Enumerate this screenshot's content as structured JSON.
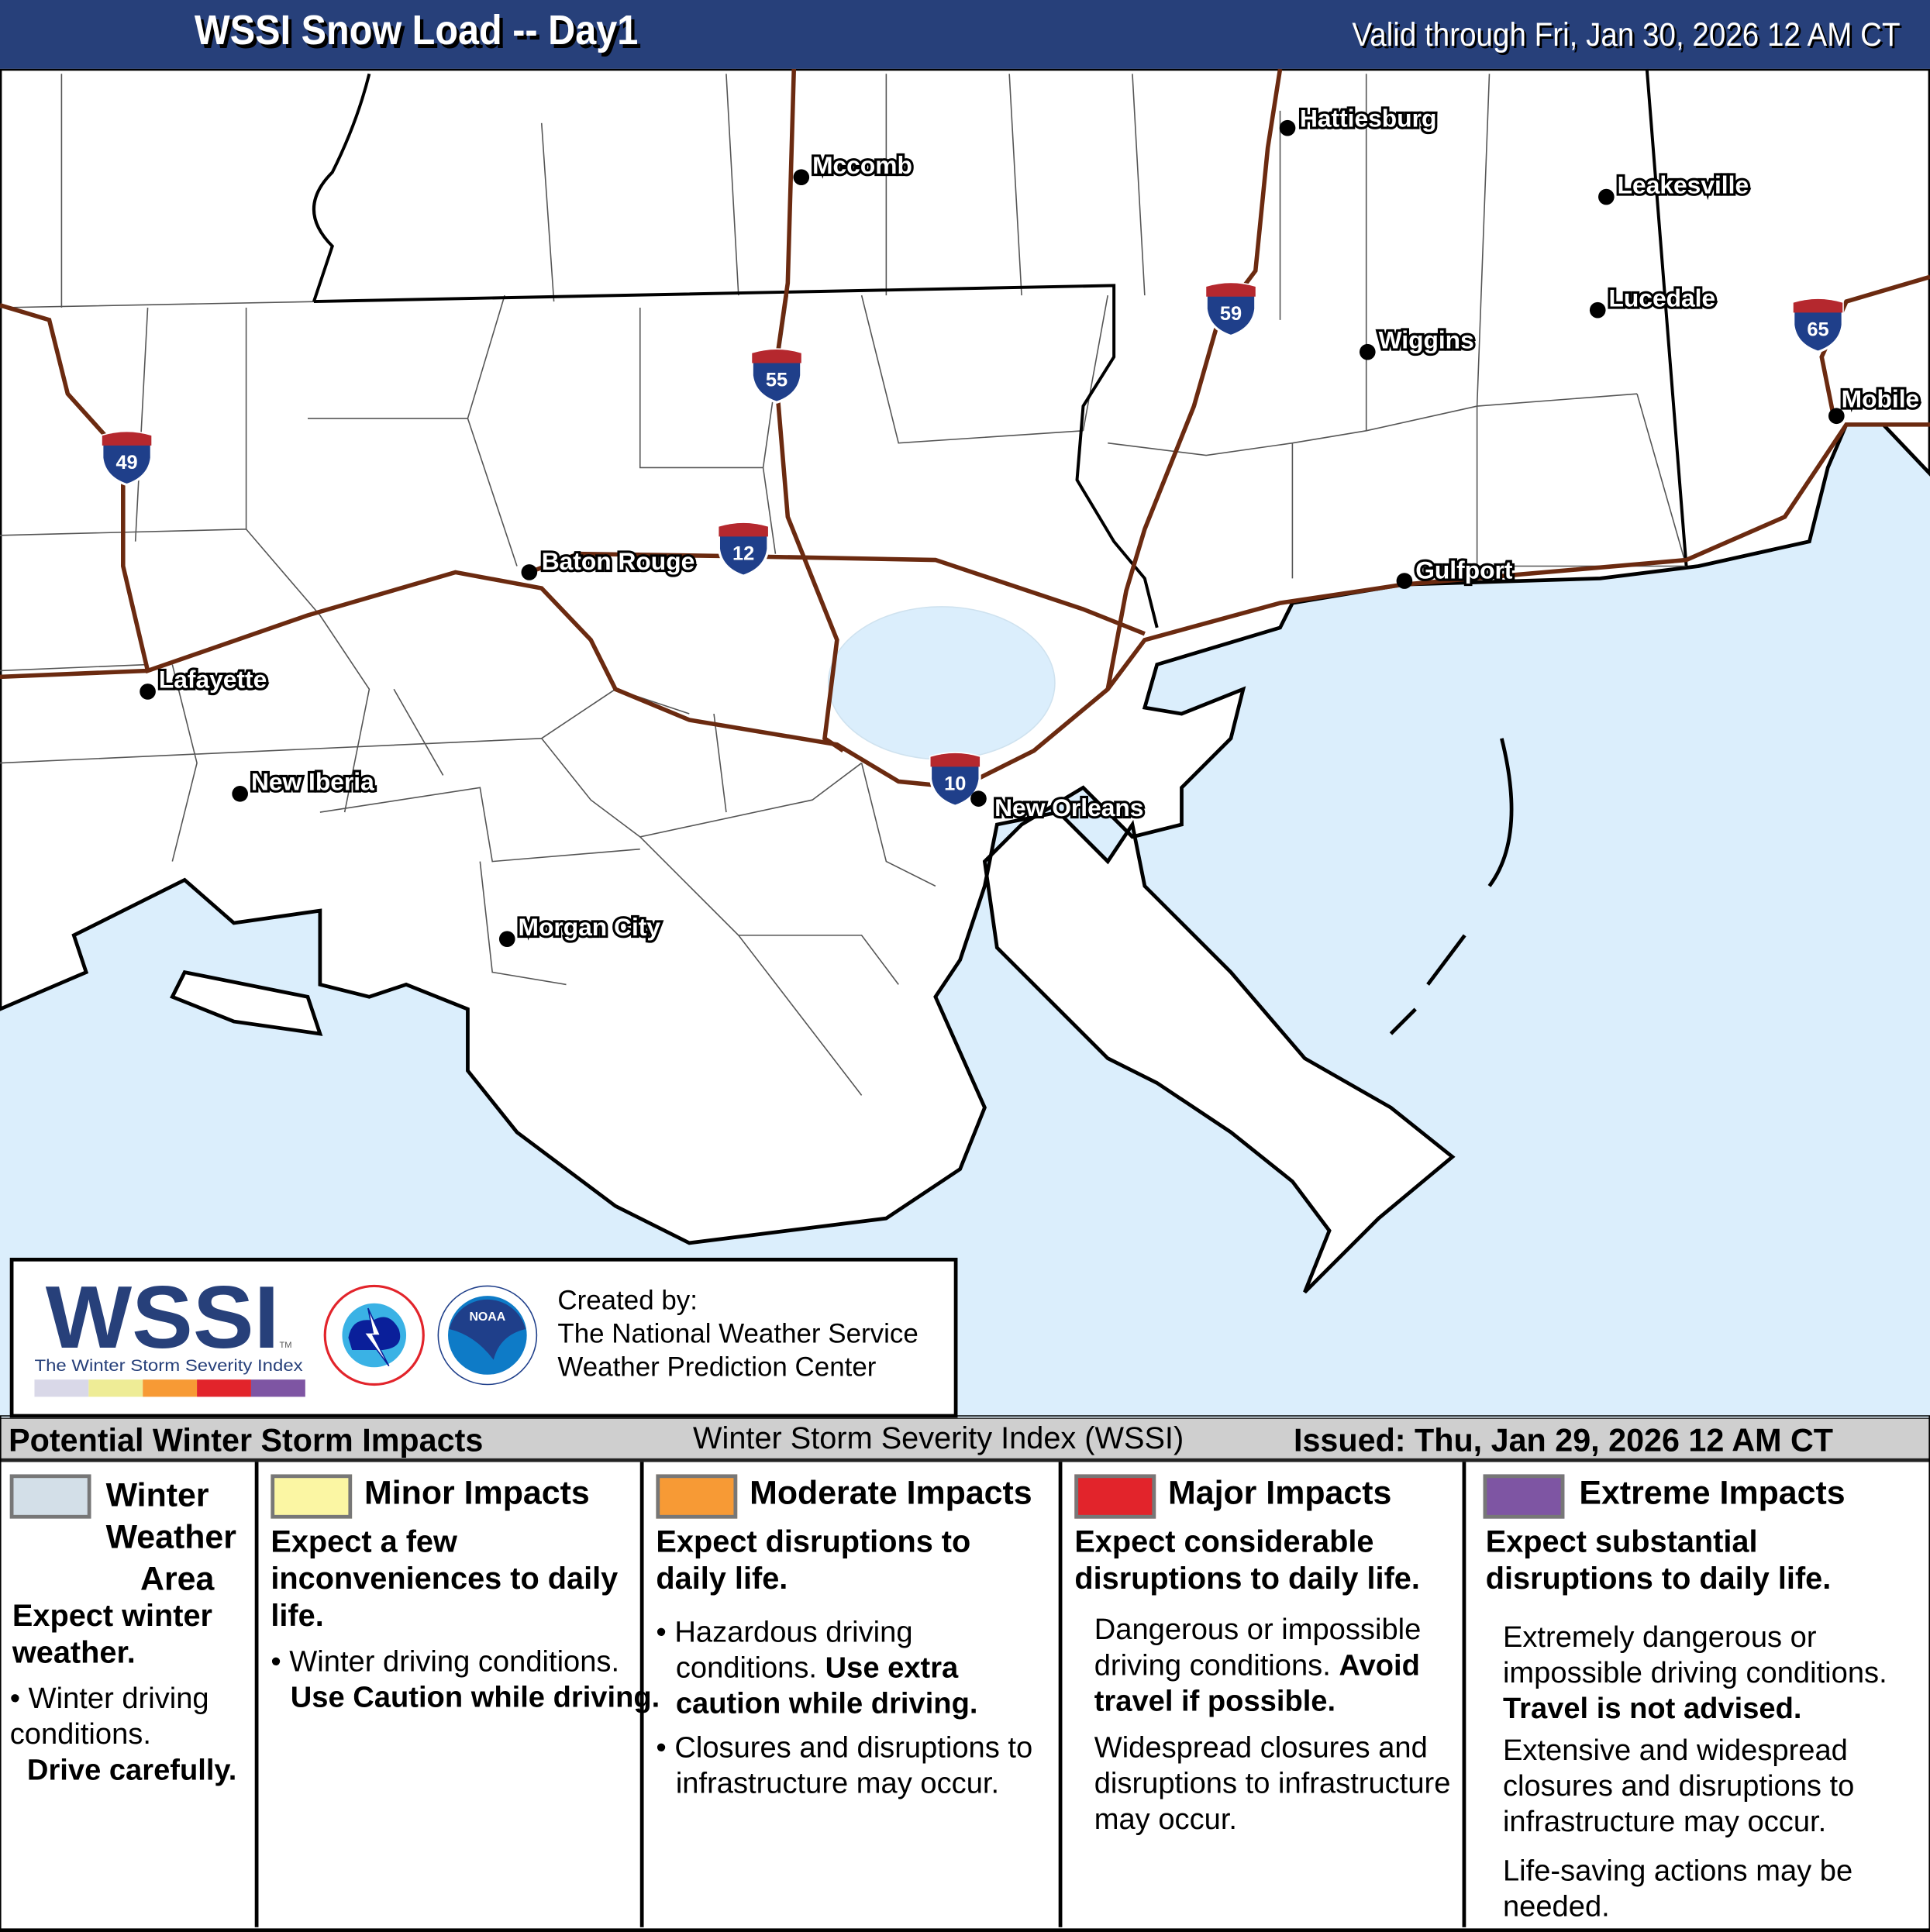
{
  "header": {
    "title": "WSSI Snow Load -- Day1",
    "valid": "Valid through Fri, Jan 30, 2026 12 AM CT"
  },
  "map": {
    "colors": {
      "water": "#dbeefc",
      "land": "#ffffff",
      "interstate": "#6b2a10",
      "shield_blue": "#1f3f8a",
      "shield_red": "#b5282e"
    },
    "cities": [
      "Hattiesburg",
      "Mccomb",
      "Leakesville",
      "Lucedale",
      "Wiggins",
      "Mobile",
      "Baton Rouge",
      "Gulfport",
      "Lafayette",
      "New Iberia",
      "New Orleans",
      "Morgan City"
    ],
    "interstates": [
      "49",
      "55",
      "12",
      "59",
      "10",
      "65"
    ]
  },
  "logo": {
    "wssi": "WSSI",
    "tm": "TM",
    "tagline": "The Winter Storm Severity Index",
    "nws": "NATIONAL WEATHER SERVICE",
    "noaa": "NOAA",
    "created_by": "Created by:",
    "org1": "The National Weather Service",
    "org2": "Weather Prediction Center",
    "scale_colors": [
      "#d9d8e8",
      "#eeec96",
      "#f79a35",
      "#e2242b",
      "#7e55a3"
    ]
  },
  "legend_bar": {
    "left": "Potential Winter Storm Impacts",
    "center": "Winter Storm Severity Index (WSSI)",
    "right": "Issued: Thu, Jan 29, 2026 12 AM CT"
  },
  "legend": [
    {
      "color": "#d3dfe8",
      "title_lines": [
        "Winter",
        "Weather",
        "Area"
      ],
      "subtitle": "Expect winter weather.",
      "b1": "Winter driving conditions.",
      "b1_bold": "Drive carefully."
    },
    {
      "color": "#fbf6a3",
      "title": "Minor Impacts",
      "subtitle": "Expect a few inconveniences to daily life.",
      "b1": "Winter driving conditions.",
      "b1_bold": "Use Caution while driving."
    },
    {
      "color": "#f79a35",
      "title": "Moderate Impacts",
      "subtitle": "Expect disruptions to daily life.",
      "b1": "Hazardous driving conditions.",
      "b1_bold": "Use extra caution while driving.",
      "b2": "Closures and disruptions to infrastructure may occur."
    },
    {
      "color": "#e2242b",
      "title": "Major Impacts",
      "subtitle": "Expect considerable disruptions to daily life.",
      "b1": "Dangerous or impossible driving conditions.",
      "b1_bold": "Avoid travel if possible.",
      "b2": "Widespread closures and disruptions to infrastructure may occur."
    },
    {
      "color": "#7e55a3",
      "title": "Extreme Impacts",
      "subtitle": "Expect substantial disruptions to daily life.",
      "b1": "Extremely dangerous or impossible driving conditions.",
      "b1_bold": "Travel is not advised.",
      "b2": "Extensive and widespread closures and disruptions to infrastructure may occur.",
      "b3": "Life-saving actions may be needed."
    }
  ]
}
